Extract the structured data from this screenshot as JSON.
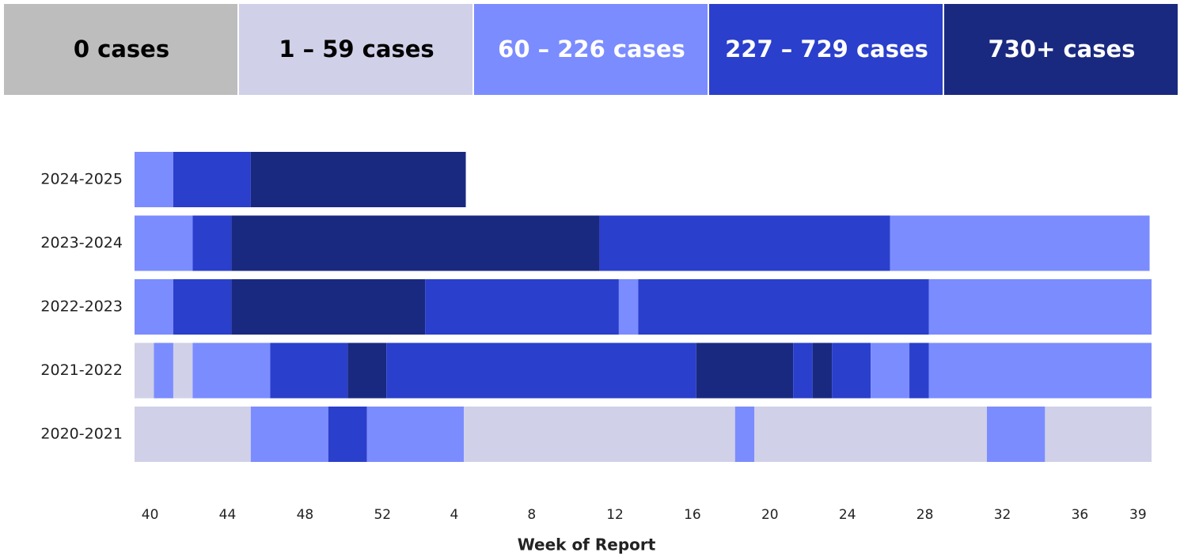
{
  "chart_data": {
    "type": "timeline",
    "legend": [
      {
        "label": "0 cases",
        "color": "#bdbdbd",
        "text_color": "#000000"
      },
      {
        "label": "1 – 59 cases",
        "color": "#d0d0e8",
        "text_color": "#000000"
      },
      {
        "label": "60 – 226 cases",
        "color": "#7b8cff",
        "text_color": "#ffffff"
      },
      {
        "label": "227 – 729 cases",
        "color": "#2a3fcc",
        "text_color": "#ffffff"
      },
      {
        "label": "730+ cases",
        "color": "#1a2980",
        "text_color": "#ffffff"
      }
    ],
    "rows": [
      {
        "name": "2024-2025",
        "segments": [
          {
            "start": 0,
            "end": 2,
            "level": 2
          },
          {
            "start": 2,
            "end": 6,
            "level": 3
          },
          {
            "start": 6,
            "end": 17.1,
            "level": 4
          }
        ]
      },
      {
        "name": "2023-2024",
        "segments": [
          {
            "start": 0,
            "end": 3,
            "level": 2
          },
          {
            "start": 3,
            "end": 5,
            "level": 3
          },
          {
            "start": 5,
            "end": 24,
            "level": 4
          },
          {
            "start": 24,
            "end": 39,
            "level": 3
          },
          {
            "start": 39,
            "end": 52.4,
            "level": 2
          }
        ]
      },
      {
        "name": "2022-2023",
        "segments": [
          {
            "start": 0,
            "end": 2,
            "level": 2
          },
          {
            "start": 2,
            "end": 5,
            "level": 3
          },
          {
            "start": 5,
            "end": 15,
            "level": 4
          },
          {
            "start": 15,
            "end": 25,
            "level": 3
          },
          {
            "start": 25,
            "end": 26,
            "level": 2
          },
          {
            "start": 26,
            "end": 41,
            "level": 3
          },
          {
            "start": 41,
            "end": 52.5,
            "level": 2
          }
        ]
      },
      {
        "name": "2021-2022",
        "segments": [
          {
            "start": 0,
            "end": 1,
            "level": 1
          },
          {
            "start": 1,
            "end": 2,
            "level": 2
          },
          {
            "start": 2,
            "end": 3,
            "level": 1
          },
          {
            "start": 3,
            "end": 7,
            "level": 2
          },
          {
            "start": 7,
            "end": 11,
            "level": 3
          },
          {
            "start": 11,
            "end": 13,
            "level": 4
          },
          {
            "start": 13,
            "end": 29,
            "level": 3
          },
          {
            "start": 29,
            "end": 34,
            "level": 4
          },
          {
            "start": 34,
            "end": 35,
            "level": 3
          },
          {
            "start": 35,
            "end": 36,
            "level": 4
          },
          {
            "start": 36,
            "end": 38,
            "level": 3
          },
          {
            "start": 38,
            "end": 40,
            "level": 2
          },
          {
            "start": 40,
            "end": 41,
            "level": 3
          },
          {
            "start": 41,
            "end": 52.5,
            "level": 2
          }
        ]
      },
      {
        "name": "2020-2021",
        "segments": [
          {
            "start": 0,
            "end": 6,
            "level": 1
          },
          {
            "start": 6,
            "end": 10,
            "level": 2
          },
          {
            "start": 10,
            "end": 12,
            "level": 3
          },
          {
            "start": 12,
            "end": 17,
            "level": 2
          },
          {
            "start": 17,
            "end": 31,
            "level": 1
          },
          {
            "start": 31,
            "end": 32,
            "level": 2
          },
          {
            "start": 32,
            "end": 44,
            "level": 1
          },
          {
            "start": 44,
            "end": 47,
            "level": 2
          },
          {
            "start": 47,
            "end": 52.5,
            "level": 1
          }
        ]
      }
    ],
    "xlim": [
      0,
      52.5
    ],
    "xticks": [
      {
        "value": 0.8,
        "label": "40"
      },
      {
        "value": 4.8,
        "label": "44"
      },
      {
        "value": 8.8,
        "label": "48"
      },
      {
        "value": 12.8,
        "label": "52"
      },
      {
        "value": 16.5,
        "label": "4"
      },
      {
        "value": 20.5,
        "label": "8"
      },
      {
        "value": 24.8,
        "label": "12"
      },
      {
        "value": 28.8,
        "label": "16"
      },
      {
        "value": 32.8,
        "label": "20"
      },
      {
        "value": 36.8,
        "label": "24"
      },
      {
        "value": 40.8,
        "label": "28"
      },
      {
        "value": 44.8,
        "label": "32"
      },
      {
        "value": 48.8,
        "label": "36"
      },
      {
        "value": 51.8,
        "label": "39"
      }
    ],
    "xlabel": "Week of Report"
  }
}
